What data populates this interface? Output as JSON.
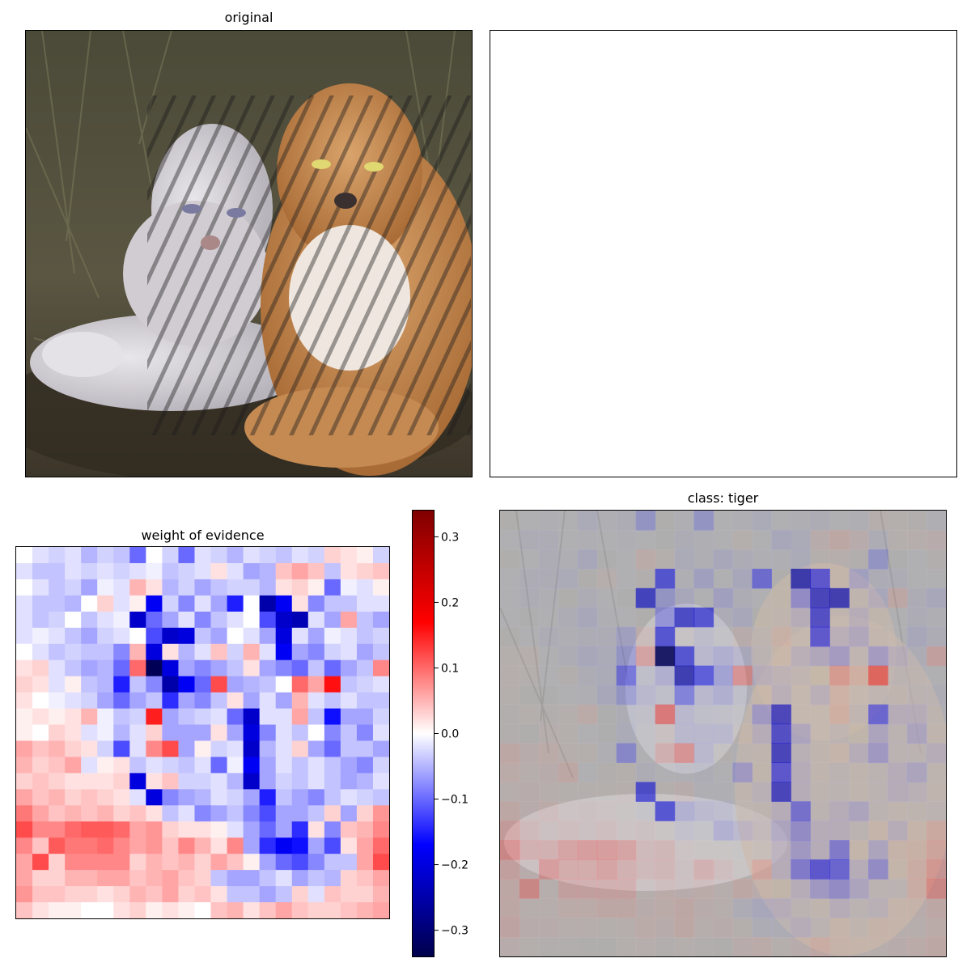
{
  "chart_data": [
    {
      "type": "image",
      "title": "original",
      "description_icon": "tiger-photo"
    },
    {
      "type": "image",
      "title": ""
    },
    {
      "type": "heatmap",
      "title": "weight of evidence",
      "grid": [
        23,
        23
      ],
      "colormap": "seismic",
      "vlim": [
        -0.34,
        0.34
      ],
      "colorbar": {
        "ticks": [
          0.3,
          0.2,
          0.1,
          0.0,
          -0.1,
          -0.2,
          -0.3
        ],
        "tick_labels": [
          "0.3",
          "0.2",
          "0.1",
          "0.0",
          "−0.1",
          "−0.2",
          "−0.3"
        ]
      },
      "values": [
        [
          0.0,
          -0.02,
          -0.03,
          -0.02,
          -0.05,
          -0.03,
          -0.04,
          -0.1,
          0.0,
          -0.03,
          -0.1,
          -0.02,
          -0.03,
          -0.05,
          -0.02,
          -0.03,
          -0.04,
          -0.02,
          -0.03,
          0.03,
          0.02,
          0.01,
          -0.03
        ],
        [
          -0.02,
          -0.04,
          -0.04,
          -0.02,
          -0.03,
          -0.02,
          -0.03,
          -0.02,
          -0.01,
          -0.04,
          -0.03,
          -0.02,
          0.02,
          -0.02,
          -0.06,
          -0.05,
          0.04,
          0.06,
          0.04,
          -0.04,
          0.02,
          0.03,
          0.04
        ],
        [
          0.0,
          -0.02,
          -0.04,
          -0.03,
          -0.06,
          -0.01,
          -0.02,
          0.05,
          0.02,
          -0.05,
          -0.03,
          -0.06,
          -0.04,
          -0.03,
          -0.03,
          -0.05,
          0.02,
          0.03,
          0.01,
          -0.1,
          -0.01,
          -0.02,
          0.01
        ],
        [
          -0.02,
          -0.04,
          -0.04,
          -0.05,
          0.0,
          0.03,
          -0.02,
          0.01,
          -0.18,
          -0.03,
          -0.08,
          -0.02,
          -0.06,
          -0.15,
          0.0,
          -0.25,
          -0.18,
          0.02,
          -0.08,
          -0.04,
          -0.04,
          -0.02,
          -0.02
        ],
        [
          -0.02,
          -0.04,
          -0.03,
          0.0,
          -0.04,
          -0.02,
          -0.01,
          -0.22,
          -0.1,
          -0.06,
          -0.02,
          -0.08,
          -0.04,
          -0.02,
          0.0,
          -0.12,
          -0.22,
          -0.24,
          -0.02,
          -0.06,
          0.06,
          -0.04,
          -0.06
        ],
        [
          -0.02,
          -0.01,
          -0.02,
          -0.04,
          -0.06,
          -0.03,
          -0.02,
          0.0,
          -0.12,
          -0.22,
          -0.2,
          -0.04,
          -0.06,
          0.0,
          -0.02,
          -0.06,
          -0.2,
          -0.02,
          -0.06,
          -0.01,
          -0.02,
          -0.04,
          -0.03
        ],
        [
          0.0,
          -0.02,
          -0.04,
          -0.03,
          -0.04,
          -0.04,
          -0.08,
          0.05,
          -0.2,
          0.02,
          -0.05,
          -0.02,
          0.04,
          -0.03,
          0.05,
          -0.02,
          -0.18,
          -0.06,
          -0.08,
          -0.03,
          -0.02,
          -0.06,
          -0.04
        ],
        [
          0.02,
          0.03,
          -0.02,
          -0.04,
          -0.06,
          -0.05,
          -0.1,
          0.1,
          -0.33,
          -0.2,
          -0.06,
          -0.08,
          -0.06,
          -0.04,
          0.02,
          -0.06,
          -0.08,
          -0.1,
          -0.04,
          -0.1,
          -0.06,
          -0.04,
          0.08
        ],
        [
          0.03,
          0.02,
          -0.02,
          0.01,
          -0.04,
          -0.05,
          -0.15,
          -0.04,
          -0.08,
          -0.25,
          -0.18,
          -0.1,
          0.12,
          -0.06,
          -0.05,
          -0.04,
          0.0,
          0.1,
          0.06,
          0.16,
          -0.04,
          -0.03,
          -0.02
        ],
        [
          0.02,
          0.0,
          -0.01,
          -0.02,
          -0.03,
          -0.06,
          -0.1,
          -0.06,
          -0.04,
          -0.14,
          -0.06,
          -0.08,
          -0.04,
          0.02,
          -0.06,
          -0.02,
          -0.06,
          0.05,
          -0.02,
          -0.04,
          -0.02,
          -0.04,
          -0.04
        ],
        [
          0.01,
          0.02,
          0.01,
          0.02,
          0.05,
          -0.01,
          -0.04,
          -0.03,
          0.15,
          -0.06,
          -0.04,
          -0.03,
          -0.02,
          -0.1,
          -0.22,
          -0.02,
          -0.02,
          0.06,
          -0.04,
          -0.16,
          -0.06,
          -0.06,
          -0.03
        ],
        [
          0.01,
          0.0,
          0.03,
          0.02,
          -0.02,
          -0.01,
          -0.05,
          -0.02,
          0.03,
          -0.06,
          -0.06,
          -0.06,
          0.02,
          -0.06,
          -0.2,
          -0.08,
          -0.02,
          -0.04,
          0.0,
          -0.08,
          -0.04,
          -0.08,
          -0.02
        ],
        [
          0.06,
          0.04,
          0.05,
          0.03,
          0.02,
          -0.03,
          -0.12,
          -0.02,
          0.08,
          0.12,
          -0.06,
          0.01,
          -0.03,
          -0.02,
          -0.22,
          -0.05,
          -0.02,
          0.03,
          -0.06,
          -0.1,
          -0.04,
          -0.04,
          -0.06
        ],
        [
          0.05,
          0.03,
          0.04,
          0.06,
          -0.02,
          0.01,
          0.02,
          -0.04,
          -0.02,
          -0.03,
          -0.04,
          -0.02,
          -0.1,
          -0.01,
          -0.18,
          -0.06,
          -0.02,
          -0.04,
          -0.02,
          -0.04,
          -0.06,
          -0.08,
          -0.03
        ],
        [
          0.03,
          0.04,
          0.03,
          0.02,
          0.02,
          0.02,
          0.03,
          -0.2,
          0.02,
          0.04,
          -0.03,
          -0.03,
          -0.02,
          -0.05,
          -0.22,
          -0.06,
          -0.03,
          -0.04,
          -0.02,
          -0.04,
          -0.06,
          -0.05,
          -0.02
        ],
        [
          0.06,
          0.04,
          0.05,
          0.03,
          0.04,
          0.03,
          0.02,
          -0.02,
          -0.2,
          -0.08,
          -0.06,
          -0.05,
          -0.02,
          -0.03,
          -0.06,
          -0.15,
          -0.04,
          -0.06,
          -0.08,
          -0.04,
          -0.02,
          -0.03,
          -0.04
        ],
        [
          0.09,
          0.06,
          0.04,
          0.05,
          0.04,
          0.05,
          0.03,
          0.04,
          0.02,
          -0.04,
          -0.02,
          -0.08,
          -0.06,
          -0.04,
          -0.08,
          -0.12,
          -0.06,
          -0.06,
          -0.04,
          0.03,
          -0.06,
          0.03,
          0.07
        ],
        [
          0.12,
          0.08,
          0.08,
          0.1,
          0.11,
          0.11,
          0.1,
          0.06,
          0.07,
          0.03,
          0.02,
          0.02,
          0.01,
          -0.02,
          -0.06,
          -0.1,
          -0.06,
          -0.14,
          0.02,
          -0.08,
          0.04,
          0.05,
          0.08
        ],
        [
          0.08,
          0.04,
          0.11,
          0.09,
          0.09,
          0.1,
          0.08,
          0.06,
          0.07,
          0.04,
          0.08,
          0.05,
          0.02,
          0.08,
          -0.06,
          -0.14,
          -0.18,
          -0.16,
          -0.06,
          -0.12,
          0.02,
          0.06,
          0.1
        ],
        [
          0.06,
          0.12,
          0.03,
          0.08,
          0.08,
          0.08,
          0.08,
          0.03,
          0.05,
          0.04,
          0.05,
          0.03,
          0.06,
          0.04,
          0.01,
          -0.06,
          -0.1,
          -0.12,
          -0.08,
          -0.04,
          -0.04,
          0.06,
          0.12
        ],
        [
          0.06,
          0.03,
          0.03,
          0.05,
          0.05,
          0.06,
          0.06,
          0.04,
          0.05,
          0.06,
          0.04,
          0.03,
          -0.04,
          -0.06,
          -0.06,
          -0.04,
          -0.02,
          -0.06,
          -0.04,
          -0.05,
          0.03,
          0.04,
          0.06
        ],
        [
          0.07,
          0.04,
          0.04,
          0.03,
          0.03,
          0.02,
          0.03,
          0.05,
          0.04,
          0.06,
          0.03,
          0.04,
          0.02,
          -0.04,
          -0.04,
          -0.06,
          -0.04,
          0.03,
          -0.02,
          0.04,
          0.03,
          0.03,
          0.05
        ],
        [
          0.04,
          0.02,
          0.01,
          0.01,
          0.0,
          0.0,
          0.02,
          0.03,
          0.01,
          0.02,
          0.01,
          0.0,
          0.04,
          0.05,
          0.02,
          0.04,
          0.06,
          0.04,
          0.03,
          0.03,
          0.04,
          0.05,
          0.06
        ]
      ]
    },
    {
      "type": "heatmap-overlay",
      "title": "class: tiger",
      "overlay_alpha": 0.5,
      "grid": [
        23,
        23
      ]
    }
  ]
}
